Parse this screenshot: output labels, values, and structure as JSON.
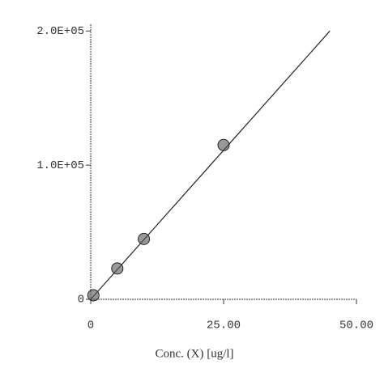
{
  "chart_data": {
    "type": "scatter",
    "x_label": "Conc. (X) [ug/l]",
    "points": {
      "color": "#555555",
      "x": [
        0.5,
        5,
        10,
        25
      ],
      "y": [
        3000,
        23000,
        45000,
        115000
      ]
    },
    "fit": {
      "color": "#222222",
      "x": [
        0,
        45
      ],
      "y": [
        0,
        200000
      ]
    },
    "xlim": [
      0,
      50
    ],
    "ylim": [
      0,
      205000
    ],
    "xticks": [
      0,
      {
        "value": 25,
        "label": "25.00"
      },
      {
        "value": 50,
        "label": "50.00"
      }
    ],
    "yticks": [
      0,
      {
        "value": 100000,
        "label": "1.0E+05"
      },
      {
        "value": 200000,
        "label": "2.0E+05"
      }
    ]
  }
}
